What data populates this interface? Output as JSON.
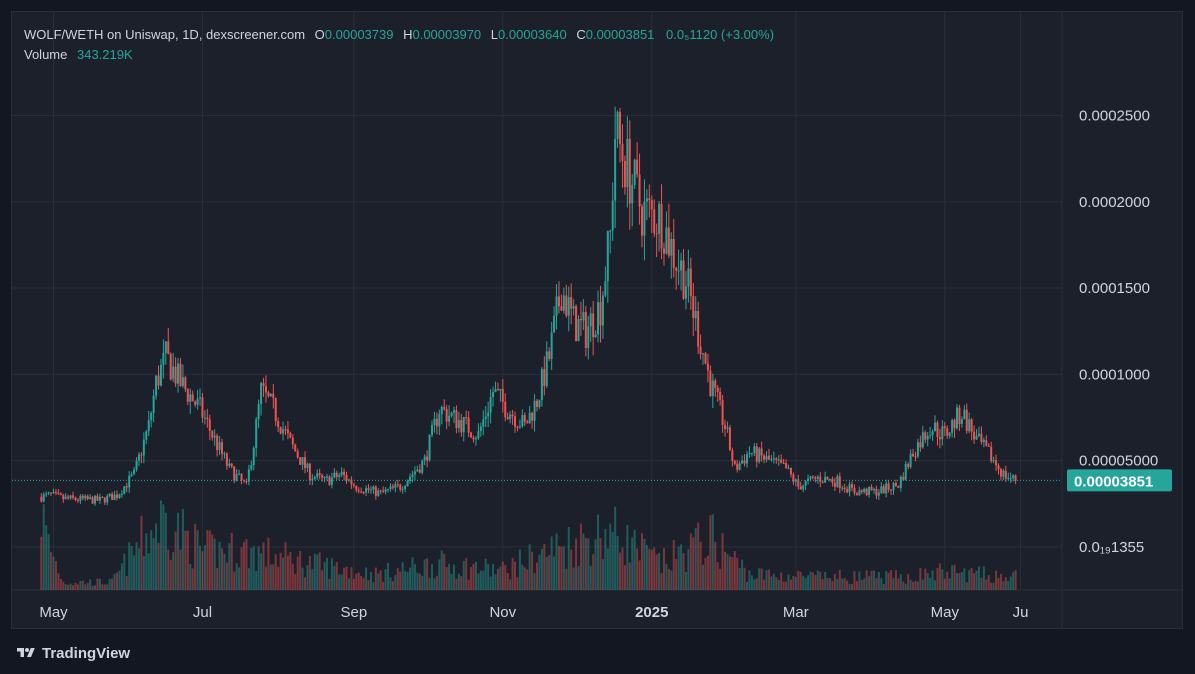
{
  "legend": {
    "symbol": "WOLF/WETH on Uniswap, 1D, dexscreener.com",
    "open_label": "O",
    "open": "0.00003739",
    "high_label": "H",
    "high": "0.00003970",
    "low_label": "L",
    "low": "0.00003640",
    "close_label": "C",
    "close": "0.00003851",
    "change": "0.0₅1120 (+3.00%)",
    "volume_label": "Volume",
    "volume": "343.219K"
  },
  "last_price_tag": "0.00003851",
  "brand": "TradingView",
  "colors": {
    "up": "#26a69a",
    "down": "#ef5350",
    "background": "#1c202b",
    "grid": "#2a2e39",
    "text": "#d1d4dc",
    "price_tag": "#26a69a"
  },
  "chart_data": {
    "type": "candlestick",
    "x_ticks": [
      "May",
      "Jul",
      "Sep",
      "Nov",
      "2025",
      "Mar",
      "May",
      "Ju"
    ],
    "x_tick_dates": [
      "2024-05-01",
      "2024-07-01",
      "2024-09-01",
      "2024-11-01",
      "2025-01-01",
      "2025-03-01",
      "2025-05-01",
      "2025-06-01"
    ],
    "y_ticks": [
      "0.0002500",
      "0.0002000",
      "0.0001500",
      "0.0001000",
      "0.00005000",
      "0.0₁₉1355"
    ],
    "y_tick_values": [
      0.00025,
      0.0002,
      0.00015,
      0.0001,
      5e-05,
      0
    ],
    "ylim": [
      -2.5e-05,
      0.00031
    ],
    "x_range": [
      "2024-04-14",
      "2025-06-18"
    ],
    "last_price": 3.851e-05,
    "grid": true,
    "price_keypoints": [
      [
        "2024-04-26",
        2.9e-05
      ],
      [
        "2024-04-30",
        3e-05
      ],
      [
        "2024-05-05",
        2.8e-05
      ],
      [
        "2024-05-20",
        2.7e-05
      ],
      [
        "2024-05-27",
        3e-05
      ],
      [
        "2024-06-03",
        4.2e-05
      ],
      [
        "2024-06-09",
        7e-05
      ],
      [
        "2024-06-12",
        9.5e-05
      ],
      [
        "2024-06-16",
        0.00011
      ],
      [
        "2024-06-22",
        9.5e-05
      ],
      [
        "2024-06-30",
        8e-05
      ],
      [
        "2024-07-05",
        6.5e-05
      ],
      [
        "2024-07-12",
        4.5e-05
      ],
      [
        "2024-07-19",
        3.5e-05
      ],
      [
        "2024-07-22",
        6e-05
      ],
      [
        "2024-07-25",
        9e-05
      ],
      [
        "2024-07-30",
        8e-05
      ],
      [
        "2024-08-06",
        6e-05
      ],
      [
        "2024-08-14",
        4.2e-05
      ],
      [
        "2024-08-20",
        3.8e-05
      ],
      [
        "2024-08-27",
        4.2e-05
      ],
      [
        "2024-09-02",
        3.5e-05
      ],
      [
        "2024-09-12",
        3.1e-05
      ],
      [
        "2024-09-20",
        3.5e-05
      ],
      [
        "2024-09-30",
        5e-05
      ],
      [
        "2024-10-06",
        8e-05
      ],
      [
        "2024-10-15",
        7.2e-05
      ],
      [
        "2024-10-22",
        6.5e-05
      ],
      [
        "2024-10-28",
        9e-05
      ],
      [
        "2024-11-03",
        8e-05
      ],
      [
        "2024-11-10",
        7e-05
      ],
      [
        "2024-11-15",
        8.5e-05
      ],
      [
        "2024-11-20",
        0.00011
      ],
      [
        "2024-11-25",
        0.00015
      ],
      [
        "2024-11-30",
        0.00013
      ],
      [
        "2024-12-05",
        0.000125
      ],
      [
        "2024-12-11",
        0.00014
      ],
      [
        "2024-12-15",
        0.00018
      ],
      [
        "2024-12-17",
        0.00024
      ],
      [
        "2024-12-22",
        0.00022
      ],
      [
        "2024-12-28",
        0.000195
      ],
      [
        "2025-01-05",
        0.00019
      ],
      [
        "2025-01-10",
        0.00017
      ],
      [
        "2025-01-15",
        0.000155
      ],
      [
        "2025-01-20",
        0.000125
      ],
      [
        "2025-01-25",
        9.5e-05
      ],
      [
        "2025-01-31",
        7e-05
      ],
      [
        "2025-02-04",
        4.5e-05
      ],
      [
        "2025-02-10",
        5.5e-05
      ],
      [
        "2025-02-18",
        5e-05
      ],
      [
        "2025-02-25",
        4.5e-05
      ],
      [
        "2025-03-02",
        3.5e-05
      ],
      [
        "2025-03-10",
        4e-05
      ],
      [
        "2025-03-18",
        3.8e-05
      ],
      [
        "2025-03-25",
        3.2e-05
      ],
      [
        "2025-04-03",
        3.2e-05
      ],
      [
        "2025-04-12",
        3.6e-05
      ],
      [
        "2025-04-18",
        5.5e-05
      ],
      [
        "2025-04-25",
        7e-05
      ],
      [
        "2025-05-01",
        6.5e-05
      ],
      [
        "2025-05-08",
        7.8e-05
      ],
      [
        "2025-05-14",
        6.2e-05
      ],
      [
        "2025-05-20",
        5.2e-05
      ],
      [
        "2025-05-25",
        4.2e-05
      ],
      [
        "2025-05-30",
        3.85e-05
      ]
    ],
    "volume_keypoints": [
      [
        "2024-04-26",
        0.6
      ],
      [
        "2024-04-29",
        0.35
      ],
      [
        "2024-05-05",
        0.06
      ],
      [
        "2024-05-25",
        0.06
      ],
      [
        "2024-06-05",
        0.35
      ],
      [
        "2024-06-15",
        0.55
      ],
      [
        "2024-07-01",
        0.3
      ],
      [
        "2024-07-20",
        0.3
      ],
      [
        "2024-08-15",
        0.2
      ],
      [
        "2024-09-10",
        0.12
      ],
      [
        "2024-10-05",
        0.2
      ],
      [
        "2024-11-01",
        0.15
      ],
      [
        "2024-11-20",
        0.3
      ],
      [
        "2024-12-15",
        0.45
      ],
      [
        "2025-01-05",
        0.2
      ],
      [
        "2025-01-25",
        0.4
      ],
      [
        "2025-02-10",
        0.12
      ],
      [
        "2025-03-10",
        0.1
      ],
      [
        "2025-04-15",
        0.1
      ],
      [
        "2025-05-01",
        0.14
      ],
      [
        "2025-05-30",
        0.1
      ]
    ]
  }
}
